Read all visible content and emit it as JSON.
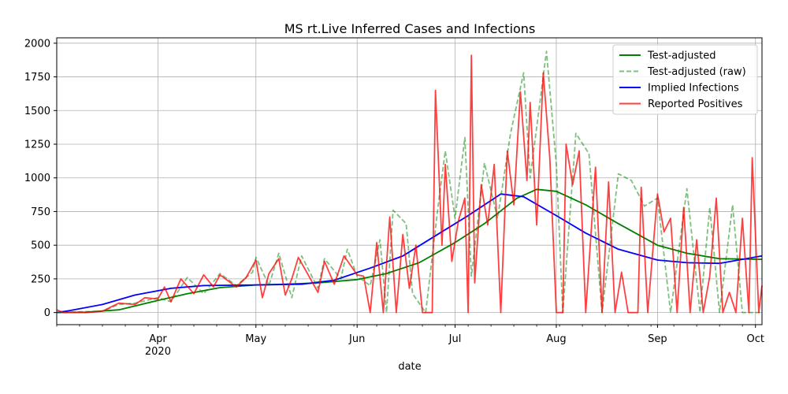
{
  "chart_data": {
    "type": "line",
    "title": "MS rt.Live Inferred Cases and Infections",
    "xlabel": "date",
    "ylabel": "",
    "x_range": [
      "2020-03-01",
      "2020-10-03"
    ],
    "ylim": [
      -90,
      2040
    ],
    "grid": true,
    "legend_position": "top-right",
    "x_ticks": [
      {
        "date": "2020-04-01",
        "label": "Apr",
        "sublabel": "2020"
      },
      {
        "date": "2020-05-01",
        "label": "May",
        "sublabel": ""
      },
      {
        "date": "2020-06-01",
        "label": "Jun",
        "sublabel": ""
      },
      {
        "date": "2020-07-01",
        "label": "Jul",
        "sublabel": ""
      },
      {
        "date": "2020-08-01",
        "label": "Aug",
        "sublabel": ""
      },
      {
        "date": "2020-09-01",
        "label": "Sep",
        "sublabel": ""
      },
      {
        "date": "2020-10-01",
        "label": "Oct",
        "sublabel": ""
      }
    ],
    "y_ticks": [
      0,
      250,
      500,
      750,
      1000,
      1250,
      1500,
      1750,
      2000
    ],
    "legend": [
      {
        "label": "Test-adjusted",
        "color": "#008000",
        "dash": "solid",
        "opacity": 1
      },
      {
        "label": "Test-adjusted (raw)",
        "color": "#008000",
        "dash": "dashed",
        "opacity": 0.5
      },
      {
        "label": "Implied Infections",
        "color": "#0000ff",
        "dash": "solid",
        "opacity": 1
      },
      {
        "label": "Reported Positives",
        "color": "#ff0000",
        "dash": "solid",
        "opacity": 0.75
      }
    ],
    "series": [
      {
        "name": "Test-adjusted",
        "color": "#008000",
        "points": [
          [
            "2020-03-01",
            0
          ],
          [
            "2020-03-10",
            3
          ],
          [
            "2020-03-20",
            20
          ],
          [
            "2020-04-01",
            90
          ],
          [
            "2020-04-10",
            140
          ],
          [
            "2020-04-20",
            185
          ],
          [
            "2020-05-01",
            205
          ],
          [
            "2020-05-10",
            210
          ],
          [
            "2020-05-20",
            220
          ],
          [
            "2020-06-01",
            245
          ],
          [
            "2020-06-10",
            290
          ],
          [
            "2020-06-20",
            370
          ],
          [
            "2020-07-01",
            520
          ],
          [
            "2020-07-10",
            660
          ],
          [
            "2020-07-20",
            850
          ],
          [
            "2020-07-26",
            915
          ],
          [
            "2020-08-01",
            900
          ],
          [
            "2020-08-10",
            800
          ],
          [
            "2020-08-20",
            660
          ],
          [
            "2020-09-01",
            500
          ],
          [
            "2020-09-10",
            440
          ],
          [
            "2020-09-20",
            400
          ],
          [
            "2020-10-03",
            395
          ]
        ]
      },
      {
        "name": "Implied Infections",
        "color": "#0000ff",
        "points": [
          [
            "2020-03-01",
            0
          ],
          [
            "2020-03-05",
            15
          ],
          [
            "2020-03-15",
            60
          ],
          [
            "2020-03-25",
            130
          ],
          [
            "2020-04-05",
            180
          ],
          [
            "2020-04-15",
            200
          ],
          [
            "2020-05-01",
            205
          ],
          [
            "2020-05-15",
            210
          ],
          [
            "2020-05-25",
            240
          ],
          [
            "2020-06-05",
            330
          ],
          [
            "2020-06-15",
            420
          ],
          [
            "2020-06-25",
            570
          ],
          [
            "2020-07-05",
            720
          ],
          [
            "2020-07-15",
            880
          ],
          [
            "2020-07-22",
            860
          ],
          [
            "2020-08-01",
            720
          ],
          [
            "2020-08-10",
            590
          ],
          [
            "2020-08-20",
            470
          ],
          [
            "2020-09-01",
            390
          ],
          [
            "2020-09-10",
            370
          ],
          [
            "2020-09-20",
            365
          ],
          [
            "2020-10-03",
            420
          ]
        ]
      },
      {
        "name": "Test-adjusted (raw)",
        "color": "#008000",
        "points": [
          [
            "2020-03-01",
            0
          ],
          [
            "2020-03-15",
            10
          ],
          [
            "2020-03-20",
            60
          ],
          [
            "2020-03-25",
            70
          ],
          [
            "2020-04-01",
            110
          ],
          [
            "2020-04-05",
            80
          ],
          [
            "2020-04-10",
            260
          ],
          [
            "2020-04-15",
            140
          ],
          [
            "2020-04-20",
            290
          ],
          [
            "2020-04-25",
            200
          ],
          [
            "2020-04-30",
            300
          ],
          [
            "2020-05-01",
            410
          ],
          [
            "2020-05-05",
            200
          ],
          [
            "2020-05-08",
            440
          ],
          [
            "2020-05-12",
            110
          ],
          [
            "2020-05-15",
            420
          ],
          [
            "2020-05-20",
            180
          ],
          [
            "2020-05-22",
            400
          ],
          [
            "2020-05-27",
            250
          ],
          [
            "2020-05-29",
            470
          ],
          [
            "2020-06-01",
            270
          ],
          [
            "2020-06-05",
            200
          ],
          [
            "2020-06-08",
            540
          ],
          [
            "2020-06-10",
            0
          ],
          [
            "2020-06-12",
            760
          ],
          [
            "2020-06-16",
            660
          ],
          [
            "2020-06-18",
            140
          ],
          [
            "2020-06-22",
            0
          ],
          [
            "2020-06-26",
            830
          ],
          [
            "2020-06-28",
            1200
          ],
          [
            "2020-07-01",
            700
          ],
          [
            "2020-07-04",
            1300
          ],
          [
            "2020-07-06",
            270
          ],
          [
            "2020-07-10",
            1110
          ],
          [
            "2020-07-14",
            700
          ],
          [
            "2020-07-18",
            1330
          ],
          [
            "2020-07-22",
            1780
          ],
          [
            "2020-07-24",
            1000
          ],
          [
            "2020-07-29",
            1940
          ],
          [
            "2020-08-01",
            1100
          ],
          [
            "2020-08-03",
            0
          ],
          [
            "2020-08-07",
            1330
          ],
          [
            "2020-08-11",
            1180
          ],
          [
            "2020-08-15",
            0
          ],
          [
            "2020-08-20",
            1030
          ],
          [
            "2020-08-24",
            980
          ],
          [
            "2020-08-28",
            790
          ],
          [
            "2020-09-01",
            850
          ],
          [
            "2020-09-05",
            0
          ],
          [
            "2020-09-10",
            920
          ],
          [
            "2020-09-14",
            0
          ],
          [
            "2020-09-17",
            780
          ],
          [
            "2020-09-20",
            0
          ],
          [
            "2020-09-24",
            800
          ],
          [
            "2020-09-27",
            0
          ],
          [
            "2020-10-03",
            0
          ]
        ]
      },
      {
        "name": "Reported Positives",
        "color": "#ff0000",
        "points": [
          [
            "2020-03-01",
            20
          ],
          [
            "2020-03-03",
            0
          ],
          [
            "2020-03-10",
            0
          ],
          [
            "2020-03-15",
            10
          ],
          [
            "2020-03-20",
            70
          ],
          [
            "2020-03-25",
            60
          ],
          [
            "2020-03-28",
            110
          ],
          [
            "2020-04-01",
            100
          ],
          [
            "2020-04-03",
            190
          ],
          [
            "2020-04-05",
            80
          ],
          [
            "2020-04-08",
            250
          ],
          [
            "2020-04-12",
            140
          ],
          [
            "2020-04-15",
            280
          ],
          [
            "2020-04-18",
            190
          ],
          [
            "2020-04-20",
            280
          ],
          [
            "2020-04-25",
            190
          ],
          [
            "2020-04-28",
            260
          ],
          [
            "2020-05-01",
            390
          ],
          [
            "2020-05-03",
            110
          ],
          [
            "2020-05-05",
            290
          ],
          [
            "2020-05-08",
            400
          ],
          [
            "2020-05-10",
            130
          ],
          [
            "2020-05-12",
            250
          ],
          [
            "2020-05-14",
            410
          ],
          [
            "2020-05-17",
            280
          ],
          [
            "2020-05-20",
            150
          ],
          [
            "2020-05-22",
            380
          ],
          [
            "2020-05-25",
            210
          ],
          [
            "2020-05-28",
            420
          ],
          [
            "2020-06-01",
            280
          ],
          [
            "2020-06-03",
            270
          ],
          [
            "2020-06-05",
            0
          ],
          [
            "2020-06-07",
            520
          ],
          [
            "2020-06-09",
            0
          ],
          [
            "2020-06-11",
            710
          ],
          [
            "2020-06-13",
            0
          ],
          [
            "2020-06-15",
            580
          ],
          [
            "2020-06-17",
            180
          ],
          [
            "2020-06-19",
            500
          ],
          [
            "2020-06-21",
            0
          ],
          [
            "2020-06-24",
            0
          ],
          [
            "2020-06-25",
            1650
          ],
          [
            "2020-06-27",
            500
          ],
          [
            "2020-06-28",
            1100
          ],
          [
            "2020-06-30",
            380
          ],
          [
            "2020-07-02",
            680
          ],
          [
            "2020-07-04",
            850
          ],
          [
            "2020-07-05",
            0
          ],
          [
            "2020-07-06",
            1910
          ],
          [
            "2020-07-07",
            220
          ],
          [
            "2020-07-09",
            950
          ],
          [
            "2020-07-11",
            650
          ],
          [
            "2020-07-13",
            1100
          ],
          [
            "2020-07-15",
            0
          ],
          [
            "2020-07-17",
            1200
          ],
          [
            "2020-07-19",
            800
          ],
          [
            "2020-07-21",
            1640
          ],
          [
            "2020-07-23",
            980
          ],
          [
            "2020-07-24",
            1560
          ],
          [
            "2020-07-26",
            650
          ],
          [
            "2020-07-28",
            1780
          ],
          [
            "2020-07-30",
            1150
          ],
          [
            "2020-08-01",
            0
          ],
          [
            "2020-08-03",
            0
          ],
          [
            "2020-08-04",
            1250
          ],
          [
            "2020-08-06",
            950
          ],
          [
            "2020-08-08",
            1200
          ],
          [
            "2020-08-10",
            0
          ],
          [
            "2020-08-13",
            1080
          ],
          [
            "2020-08-15",
            0
          ],
          [
            "2020-08-17",
            970
          ],
          [
            "2020-08-19",
            0
          ],
          [
            "2020-08-21",
            300
          ],
          [
            "2020-08-23",
            0
          ],
          [
            "2020-08-26",
            0
          ],
          [
            "2020-08-27",
            930
          ],
          [
            "2020-08-29",
            0
          ],
          [
            "2020-09-01",
            880
          ],
          [
            "2020-09-03",
            600
          ],
          [
            "2020-09-05",
            700
          ],
          [
            "2020-09-07",
            0
          ],
          [
            "2020-09-09",
            780
          ],
          [
            "2020-09-11",
            0
          ],
          [
            "2020-09-13",
            540
          ],
          [
            "2020-09-15",
            0
          ],
          [
            "2020-09-17",
            270
          ],
          [
            "2020-09-19",
            850
          ],
          [
            "2020-09-21",
            0
          ],
          [
            "2020-09-23",
            150
          ],
          [
            "2020-09-25",
            0
          ],
          [
            "2020-09-27",
            700
          ],
          [
            "2020-09-29",
            0
          ],
          [
            "2020-09-30",
            1150
          ],
          [
            "2020-10-02",
            0
          ],
          [
            "2020-10-03",
            200
          ]
        ]
      }
    ]
  }
}
